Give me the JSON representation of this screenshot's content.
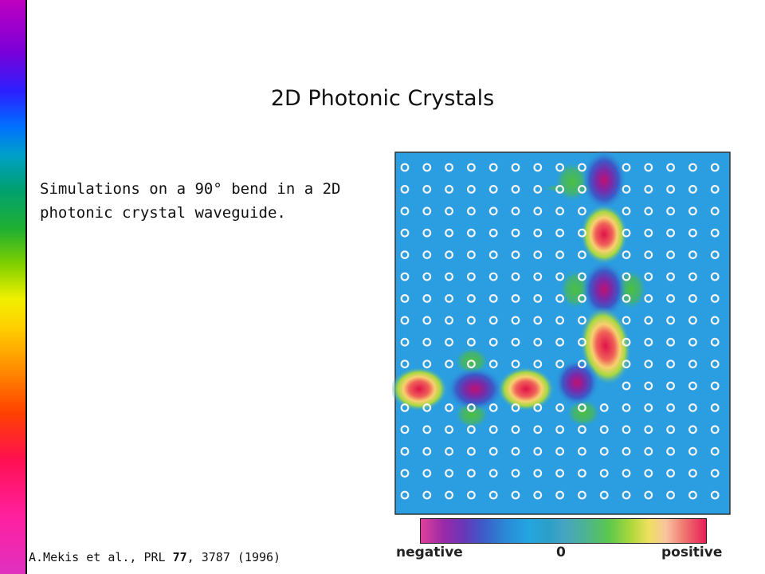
{
  "slide": {
    "title": "2D Photonic Crystals",
    "body_line1": "Simulations on a 90° bend in a 2D",
    "body_line2": "photonic crystal waveguide.",
    "citation_authors": "A.Mekis et al., PRL ",
    "citation_volume": "77",
    "citation_rest": ", 3787 (1996)"
  },
  "figure": {
    "scale_negative": "negative",
    "scale_zero": "0",
    "scale_positive": "positive",
    "colors": {
      "background": "#2a9ee0",
      "positive": "#e0124a",
      "negative": "#b01070",
      "rod": "#f4f4f4"
    }
  }
}
